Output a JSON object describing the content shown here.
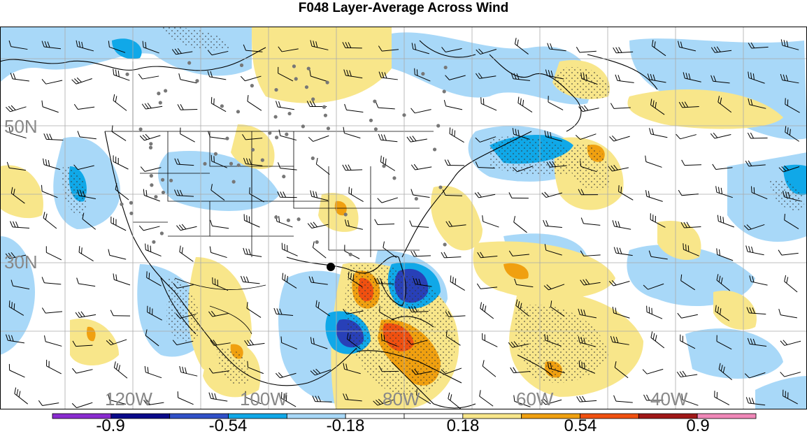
{
  "title": "F048 Layer-Average Across Wind",
  "lat_labels": [
    "50N",
    "30N"
  ],
  "lon_labels": [
    "120W",
    "100W",
    "80W",
    "60W",
    "40W"
  ],
  "colorbar": {
    "colors": [
      "#8a2bd0",
      "#0a0a8a",
      "#3050c8",
      "#10a8e8",
      "#a8d8f8",
      "#ffffff",
      "#ffffff",
      "#f8e68a",
      "#f0a010",
      "#f05010",
      "#a01818",
      "#f088b8"
    ],
    "labels": [
      "-0.9",
      "-0.54",
      "-0.18",
      "0.18",
      "0.54",
      "0.9"
    ]
  },
  "station_marker": "filled-circle"
}
